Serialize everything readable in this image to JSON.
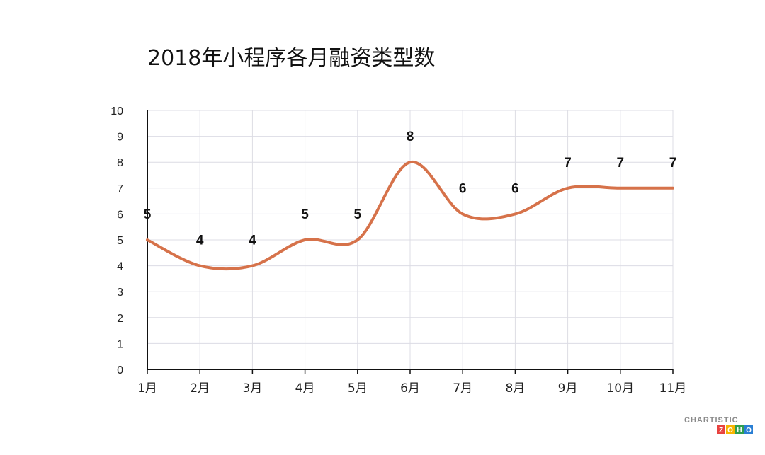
{
  "chart_data": {
    "type": "line",
    "title": "2018年小程序各月融资类型数",
    "xlabel": "",
    "ylabel": "",
    "categories": [
      "1月",
      "2月",
      "3月",
      "4月",
      "5月",
      "6月",
      "7月",
      "8月",
      "9月",
      "10月",
      "11月"
    ],
    "series": [
      {
        "values": [
          5,
          4,
          4,
          5,
          5,
          8,
          6,
          6,
          7,
          7,
          7
        ]
      }
    ],
    "ylim": [
      0,
      10
    ],
    "yticks": [
      0,
      1,
      2,
      3,
      4,
      5,
      6,
      7,
      8,
      9,
      10
    ],
    "line_color": "#d6724a",
    "smooth": true,
    "grid": true,
    "data_labels": true
  },
  "watermark": {
    "text": "CHARTISTIC",
    "sub": "ZOHO"
  }
}
